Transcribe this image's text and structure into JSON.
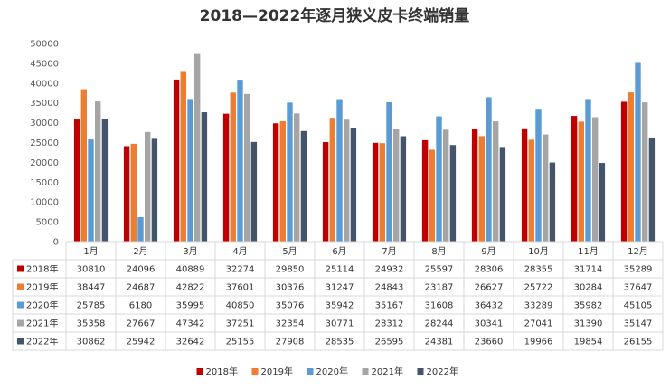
{
  "chart_data": {
    "type": "bar",
    "title": "2018—2022年逐月狭义皮卡终端销量",
    "categories": [
      "1月",
      "2月",
      "3月",
      "4月",
      "5月",
      "6月",
      "7月",
      "8月",
      "9月",
      "10月",
      "11月",
      "12月"
    ],
    "ylim": [
      0,
      50000
    ],
    "yticks": [
      0,
      5000,
      10000,
      15000,
      20000,
      25000,
      30000,
      35000,
      40000,
      45000,
      50000
    ],
    "grid": false,
    "legend_position": "bottom",
    "data_table": true,
    "series": [
      {
        "name": "2018年",
        "color": "#C00000",
        "values": [
          30810,
          24096,
          40889,
          32274,
          29850,
          25114,
          24932,
          25597,
          28306,
          28355,
          31714,
          35289
        ]
      },
      {
        "name": "2019年",
        "color": "#ED7D31",
        "values": [
          38447,
          24687,
          42822,
          37601,
          30376,
          31247,
          24843,
          23187,
          26627,
          25722,
          30284,
          37647
        ]
      },
      {
        "name": "2020年",
        "color": "#5B9BD5",
        "values": [
          25785,
          6180,
          35995,
          40850,
          35076,
          35942,
          35167,
          31608,
          36432,
          33289,
          35982,
          45105
        ]
      },
      {
        "name": "2021年",
        "color": "#A5A5A5",
        "values": [
          35358,
          27667,
          47342,
          37251,
          32354,
          30771,
          28312,
          28244,
          30341,
          27041,
          31390,
          35147
        ]
      },
      {
        "name": "2022年",
        "color": "#44546A",
        "values": [
          30862,
          25942,
          32642,
          25155,
          27908,
          28535,
          26595,
          24381,
          23660,
          19966,
          19854,
          26155
        ]
      }
    ]
  }
}
